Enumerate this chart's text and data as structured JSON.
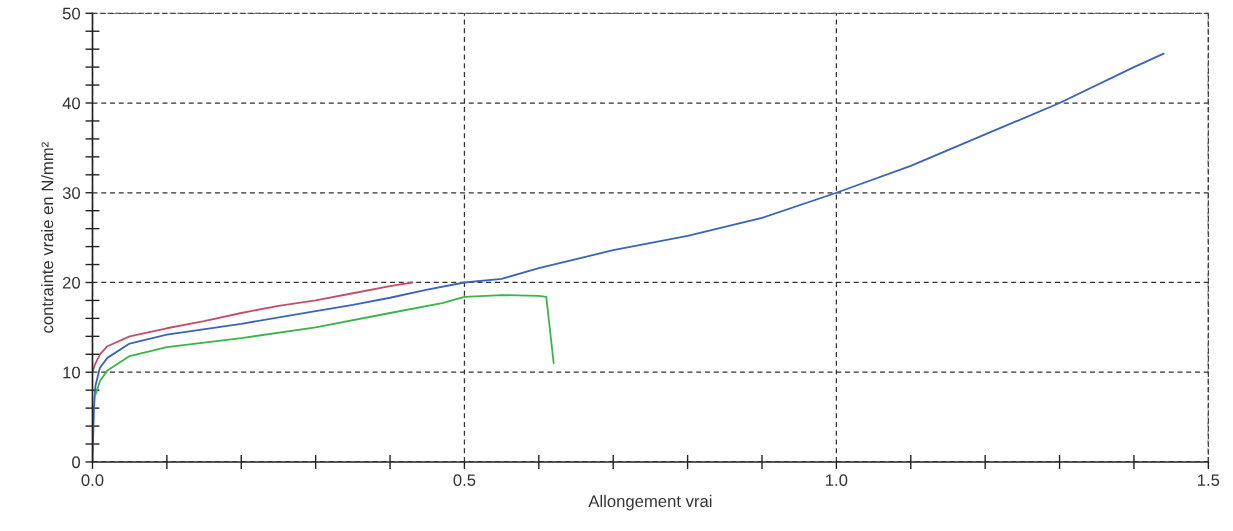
{
  "chart_data": {
    "type": "line",
    "xlabel": "Allongement vrai",
    "ylabel": "contrainte vraie en N/mm²",
    "xlim": [
      0,
      1.5
    ],
    "ylim": [
      0,
      50
    ],
    "xticks": [
      {
        "value": 0,
        "label": "0.0"
      },
      {
        "value": 0.1,
        "label": null
      },
      {
        "value": 0.2,
        "label": null
      },
      {
        "value": 0.3,
        "label": null
      },
      {
        "value": 0.4,
        "label": null
      },
      0.5,
      {
        "value": 0.6,
        "label": null
      },
      {
        "value": 0.7,
        "label": null
      },
      {
        "value": 0.8,
        "label": null
      },
      {
        "value": 0.9,
        "label": null
      },
      {
        "value": 1,
        "label": "1.0"
      },
      {
        "value": 1.1,
        "label": null
      },
      {
        "value": 1.2,
        "label": null
      },
      {
        "value": 1.3,
        "label": null
      },
      {
        "value": 1.4,
        "label": null
      },
      {
        "value": 1.5,
        "label": "1.5"
      }
    ],
    "yticks": [
      0,
      {
        "value": 2,
        "label": null
      },
      {
        "value": 4,
        "label": null
      },
      {
        "value": 6,
        "label": null
      },
      {
        "value": 8,
        "label": null
      },
      10,
      {
        "value": 12,
        "label": null
      },
      {
        "value": 14,
        "label": null
      },
      {
        "value": 16,
        "label": null
      },
      {
        "value": 18,
        "label": null
      },
      20,
      {
        "value": 22,
        "label": null
      },
      {
        "value": 24,
        "label": null
      },
      {
        "value": 26,
        "label": null
      },
      {
        "value": 28,
        "label": null
      },
      30,
      {
        "value": 32,
        "label": null
      },
      {
        "value": 34,
        "label": null
      },
      {
        "value": 36,
        "label": null
      },
      {
        "value": 38,
        "label": null
      },
      40,
      {
        "value": 42,
        "label": null
      },
      {
        "value": 44,
        "label": null
      },
      {
        "value": 46,
        "label": null
      },
      {
        "value": 48,
        "label": null
      },
      50
    ],
    "grid": true,
    "legend": false,
    "line_style": "solid",
    "marker": "none",
    "series": [
      {
        "color": "#c0506a",
        "x": [
          0,
          0.003,
          0.01,
          0.02,
          0.05,
          0.1,
          0.15,
          0.2,
          0.25,
          0.3,
          0.35,
          0.4,
          0.43
        ],
        "values": [
          10,
          10.8,
          12,
          12.9,
          14,
          14.9,
          15.7,
          16.6,
          17.4,
          18,
          18.8,
          19.6,
          20
        ]
      },
      {
        "color": "#3a64b8",
        "x": [
          0,
          0.002,
          0.004,
          0.01,
          0.02,
          0.05,
          0.1,
          0.2,
          0.3,
          0.35,
          0.4,
          0.45,
          0.5,
          0.55,
          0.6,
          0.7,
          0.8,
          0.9,
          1.0,
          1.1,
          1.2,
          1.3,
          1.4,
          1.44
        ],
        "values": [
          0,
          6,
          8.5,
          10.5,
          11.6,
          13.2,
          14.2,
          15.4,
          16.8,
          17.5,
          18.3,
          19.2,
          20,
          20.4,
          21.6,
          23.6,
          25.2,
          27.2,
          30,
          33,
          36.5,
          40,
          44,
          45.5
        ]
      },
      {
        "color": "#3cb44a",
        "x": [
          0.004,
          0.01,
          0.02,
          0.05,
          0.1,
          0.2,
          0.3,
          0.4,
          0.47,
          0.5,
          0.55,
          0.6,
          0.61,
          0.62
        ],
        "values": [
          7.5,
          9,
          10.2,
          11.8,
          12.8,
          13.8,
          15,
          16.6,
          17.7,
          18.4,
          18.6,
          18.5,
          18.4,
          11
        ]
      }
    ]
  }
}
